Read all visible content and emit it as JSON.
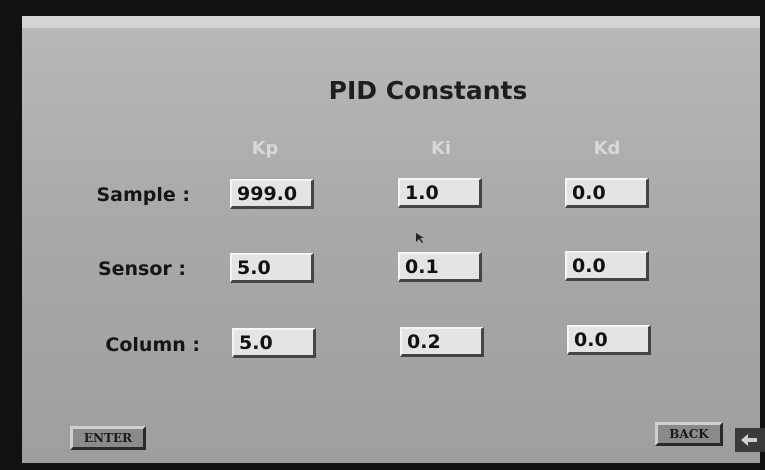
{
  "screen": {
    "title": "PID Constants",
    "columns": [
      "Kp",
      "Ki",
      "Kd"
    ],
    "rows": [
      {
        "label": "Sample :",
        "values": [
          "999.0",
          "1.0",
          "0.0"
        ]
      },
      {
        "label": "Sensor :",
        "values": [
          "5.0",
          "0.1",
          "0.0"
        ]
      },
      {
        "label": "Column :",
        "values": [
          "5.0",
          "0.2",
          "0.0"
        ]
      }
    ],
    "buttons": {
      "enter": "ENTER",
      "back": "BACK"
    }
  }
}
